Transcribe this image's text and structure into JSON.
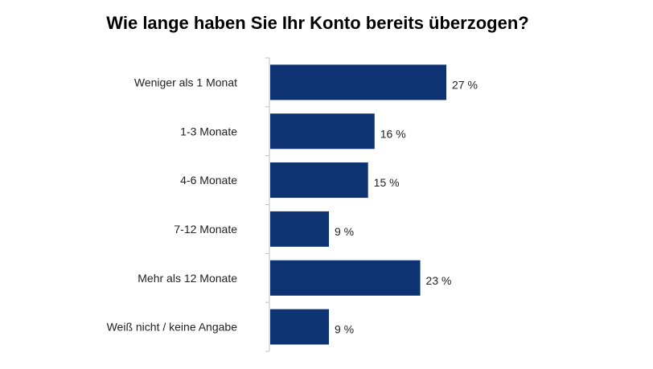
{
  "chart_data": {
    "type": "bar",
    "orientation": "horizontal",
    "title": "Wie lange haben Sie Ihr Konto bereits überzogen?",
    "categories": [
      "Weniger als 1 Monat",
      "1-3 Monate",
      "4-6 Monate",
      "7-12 Monate",
      "Mehr als 12 Monate",
      "Weiß nicht / keine Angabe"
    ],
    "values": [
      27,
      16,
      15,
      9,
      23,
      9
    ],
    "value_labels": [
      "27 %",
      "16 %",
      "15 %",
      "9 %",
      "23 %",
      "9 %"
    ],
    "unit": "%",
    "xlim": [
      0,
      100
    ],
    "bar_color": "#0d3372",
    "axis_color": "#bfbfbf",
    "grid": false,
    "legend": "none"
  }
}
